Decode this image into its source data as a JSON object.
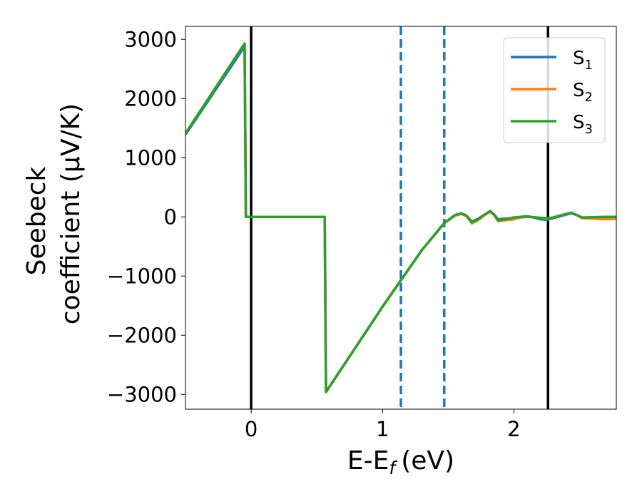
{
  "chart_data": {
    "type": "line",
    "xlabel": "E-E",
    "xlabel_sub": "f",
    "xlabel_unit": "(eV)",
    "ylabel_line1": "Seebeck",
    "ylabel_line2": "coefficient  (μV/K)",
    "xlim": [
      -0.5,
      2.78
    ],
    "ylim": [
      -3250,
      3220
    ],
    "x_ticks": [
      0,
      1,
      2
    ],
    "x_tick_labels": [
      "0",
      "1",
      "2"
    ],
    "y_ticks": [
      3000,
      2000,
      1000,
      0,
      -1000,
      -2000,
      -3000
    ],
    "y_tick_labels": [
      "3000",
      "2000",
      "1000",
      "0",
      "−1000",
      "−2000",
      "−3000"
    ],
    "vertical_lines": [
      {
        "x": 0.0,
        "style": "solid",
        "color": "#000000"
      },
      {
        "x": 2.26,
        "style": "solid",
        "color": "#000000"
      },
      {
        "x": 1.14,
        "style": "dashed",
        "color": "#1f77b4"
      },
      {
        "x": 1.47,
        "style": "dashed",
        "color": "#1f77b4"
      }
    ],
    "legend": {
      "placement": "top-right",
      "entries": [
        {
          "base": "S",
          "sub": "1"
        },
        {
          "base": "S",
          "sub": "2"
        },
        {
          "base": "S",
          "sub": "3"
        }
      ]
    },
    "series": [
      {
        "name": "S1",
        "color": "#1f77b4",
        "points": [
          [
            -0.5,
            1390
          ],
          [
            -0.05,
            2880
          ],
          [
            -0.04,
            0
          ],
          [
            0.56,
            0
          ],
          [
            0.57,
            -2960
          ],
          [
            1.0,
            -1520
          ],
          [
            1.3,
            -560
          ],
          [
            1.47,
            -110
          ],
          [
            1.55,
            20
          ],
          [
            1.6,
            60
          ],
          [
            1.64,
            20
          ],
          [
            1.68,
            -80
          ],
          [
            1.73,
            -30
          ],
          [
            1.77,
            30
          ],
          [
            1.82,
            90
          ],
          [
            1.85,
            40
          ],
          [
            1.88,
            -40
          ],
          [
            1.93,
            -30
          ],
          [
            2.0,
            -20
          ],
          [
            2.05,
            0
          ],
          [
            2.1,
            10
          ],
          [
            2.15,
            -10
          ],
          [
            2.2,
            -40
          ],
          [
            2.25,
            -50
          ],
          [
            2.3,
            -20
          ],
          [
            2.35,
            10
          ],
          [
            2.4,
            40
          ],
          [
            2.44,
            60
          ],
          [
            2.48,
            30
          ],
          [
            2.52,
            -20
          ],
          [
            2.6,
            -10
          ],
          [
            2.78,
            0
          ]
        ]
      },
      {
        "name": "S2",
        "color": "#ff7f0e",
        "points": [
          [
            -0.5,
            1410
          ],
          [
            -0.05,
            2930
          ],
          [
            -0.04,
            0
          ],
          [
            0.56,
            0
          ],
          [
            0.57,
            -2960
          ],
          [
            1.0,
            -1520
          ],
          [
            1.3,
            -560
          ],
          [
            1.47,
            -110
          ],
          [
            1.55,
            20
          ],
          [
            1.6,
            50
          ],
          [
            1.64,
            10
          ],
          [
            1.68,
            -110
          ],
          [
            1.73,
            -50
          ],
          [
            1.77,
            20
          ],
          [
            1.82,
            90
          ],
          [
            1.85,
            30
          ],
          [
            1.88,
            -70
          ],
          [
            1.93,
            -60
          ],
          [
            2.0,
            -40
          ],
          [
            2.05,
            -10
          ],
          [
            2.1,
            0
          ],
          [
            2.15,
            -5
          ],
          [
            2.2,
            -20
          ],
          [
            2.25,
            -30
          ],
          [
            2.3,
            -10
          ],
          [
            2.35,
            20
          ],
          [
            2.4,
            50
          ],
          [
            2.44,
            70
          ],
          [
            2.48,
            30
          ],
          [
            2.52,
            -20
          ],
          [
            2.6,
            -30
          ],
          [
            2.7,
            -40
          ],
          [
            2.78,
            -30
          ]
        ]
      },
      {
        "name": "S3",
        "color": "#2ca02c",
        "points": [
          [
            -0.5,
            1410
          ],
          [
            -0.05,
            2930
          ],
          [
            -0.04,
            0
          ],
          [
            0.56,
            0
          ],
          [
            0.57,
            -2960
          ],
          [
            1.0,
            -1520
          ],
          [
            1.3,
            -560
          ],
          [
            1.47,
            -100
          ],
          [
            1.55,
            30
          ],
          [
            1.6,
            60
          ],
          [
            1.64,
            20
          ],
          [
            1.68,
            -90
          ],
          [
            1.73,
            -40
          ],
          [
            1.77,
            30
          ],
          [
            1.82,
            100
          ],
          [
            1.85,
            40
          ],
          [
            1.88,
            -60
          ],
          [
            1.93,
            -40
          ],
          [
            2.0,
            -10
          ],
          [
            2.05,
            0
          ],
          [
            2.1,
            10
          ],
          [
            2.15,
            -5
          ],
          [
            2.2,
            -15
          ],
          [
            2.25,
            -25
          ],
          [
            2.3,
            -10
          ],
          [
            2.35,
            20
          ],
          [
            2.4,
            50
          ],
          [
            2.44,
            70
          ],
          [
            2.48,
            30
          ],
          [
            2.52,
            -10
          ],
          [
            2.6,
            -5
          ],
          [
            2.7,
            0
          ],
          [
            2.78,
            0
          ]
        ]
      }
    ]
  }
}
